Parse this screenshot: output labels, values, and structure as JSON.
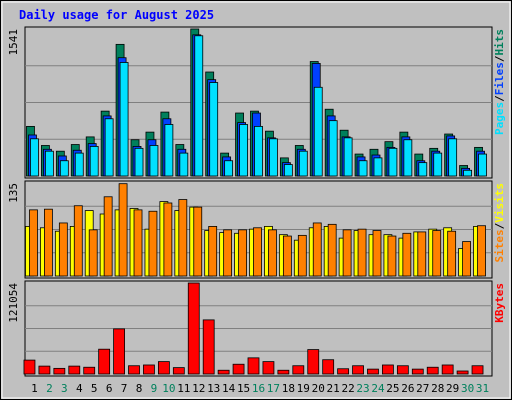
{
  "chart_data": [
    {
      "type": "bar",
      "title": "Daily usage for August 2025",
      "categories": [
        "1",
        "2",
        "3",
        "4",
        "5",
        "6",
        "7",
        "8",
        "9",
        "10",
        "11",
        "12",
        "13",
        "14",
        "15",
        "16",
        "17",
        "18",
        "19",
        "20",
        "21",
        "22",
        "23",
        "24",
        "25",
        "26",
        "27",
        "28",
        "29",
        "30",
        "31"
      ],
      "weekend_days": [
        "2",
        "3",
        "9",
        "10",
        "16",
        "17",
        "23",
        "24",
        "30",
        "31"
      ],
      "ymax_label": "1541",
      "ymax": 1541,
      "right_label": {
        "parts": [
          "Pages",
          "Files",
          "Hits"
        ],
        "separator": "/"
      },
      "series": [
        {
          "name": "Hits",
          "color": "#00805c",
          "values": [
            520,
            320,
            260,
            330,
            410,
            680,
            1380,
            380,
            460,
            670,
            330,
            1541,
            1090,
            240,
            660,
            680,
            470,
            190,
            320,
            1200,
            700,
            480,
            230,
            280,
            360,
            460,
            230,
            290,
            440,
            110,
            300
          ]
        },
        {
          "name": "Files",
          "color": "#0040ff",
          "values": [
            430,
            280,
            210,
            270,
            340,
            630,
            1240,
            310,
            380,
            600,
            280,
            1480,
            1010,
            200,
            560,
            660,
            400,
            140,
            280,
            1180,
            630,
            410,
            200,
            220,
            300,
            410,
            160,
            260,
            420,
            80,
            260
          ]
        },
        {
          "name": "Pages",
          "color": "#00e0ff",
          "values": [
            390,
            260,
            160,
            240,
            310,
            600,
            1190,
            290,
            320,
            540,
            240,
            1470,
            980,
            160,
            540,
            520,
            390,
            120,
            260,
            930,
            580,
            400,
            160,
            190,
            290,
            380,
            140,
            240,
            390,
            60,
            230
          ]
        }
      ]
    },
    {
      "type": "bar",
      "ymax_label": "135",
      "ymax": 135,
      "right_label": {
        "parts": [
          "Sites",
          "Visits"
        ],
        "separator": "/"
      },
      "series": [
        {
          "name": "Visits",
          "color": "#ffff00",
          "values": [
            72,
            70,
            65,
            72,
            95,
            90,
            96,
            98,
            68,
            108,
            95,
            100,
            66,
            63,
            62,
            68,
            72,
            60,
            52,
            70,
            72,
            55,
            66,
            60,
            60,
            55,
            64,
            68,
            70,
            40,
            72
          ]
        },
        {
          "name": "Sites",
          "color": "#ff8000",
          "values": [
            96,
            97,
            77,
            102,
            67,
            115,
            134,
            96,
            94,
            106,
            111,
            100,
            72,
            67,
            67,
            70,
            67,
            58,
            59,
            77,
            75,
            67,
            68,
            66,
            58,
            62,
            64,
            66,
            65,
            50,
            73
          ]
        }
      ]
    },
    {
      "type": "bar",
      "ymax_label": "121054",
      "ymax": 121054,
      "right_label": {
        "parts": [
          "KBytes"
        ],
        "separator": ""
      },
      "series": [
        {
          "name": "KBytes",
          "color": "#ff0000",
          "values": [
            18500,
            10500,
            7500,
            10500,
            9000,
            33000,
            60000,
            11000,
            12000,
            16500,
            8500,
            121054,
            72000,
            5000,
            13000,
            21500,
            16500,
            5000,
            11000,
            32500,
            19000,
            7000,
            11000,
            6500,
            12000,
            11000,
            6500,
            9000,
            12000,
            4000,
            11000
          ]
        }
      ]
    }
  ],
  "colors": {
    "background": "#c0c0c0",
    "title_text": "#0000ff",
    "day_weekday": "#000000",
    "day_weekend": "#00805c",
    "pages": "#00e0ff",
    "files": "#0040ff",
    "hits": "#00805c",
    "sites": "#ff8000",
    "visits": "#ffff00",
    "kbytes": "#ff0000",
    "separator": "#000000",
    "gridline": "#808080"
  }
}
